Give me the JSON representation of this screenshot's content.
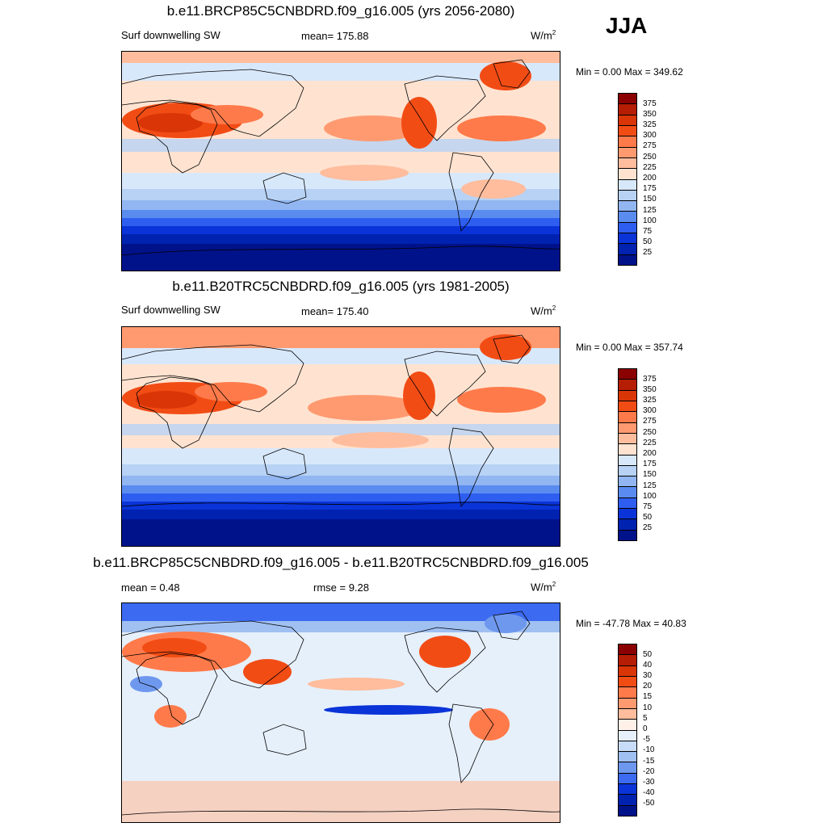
{
  "season": "JJA",
  "units_prefix": "W/m",
  "units_exp": "2",
  "panels": [
    {
      "title": "b.e11.BRCP85C5CNBDRD.f09_g16.005 (yrs 2056-2080)",
      "left_label": "Surf downwelling SW",
      "mid_label": "mean= 175.88",
      "minmax": "Min =   0.00 Max = 349.62",
      "cbar_labels": [
        "375",
        "350",
        "325",
        "300",
        "275",
        "250",
        "225",
        "200",
        "175",
        "150",
        "125",
        "100",
        "75",
        "50",
        "25"
      ],
      "cbar_colors": [
        "#8b0000",
        "#b51d04",
        "#d93507",
        "#f24c15",
        "#ff7a4a",
        "#ff9a70",
        "#ffbd9d",
        "#ffe3d0",
        "#d8e8fb",
        "#b7d2f5",
        "#91b6f1",
        "#5a8cf0",
        "#2e5ef0",
        "#0a34d8",
        "#0022b0",
        "#00128a"
      ]
    },
    {
      "title": "b.e11.B20TRC5CNBDRD.f09_g16.005 (yrs 1981-2005)",
      "left_label": "Surf downwelling SW",
      "mid_label": "mean= 175.40",
      "minmax": "Min =   0.00 Max = 357.74",
      "cbar_labels": [
        "375",
        "350",
        "325",
        "300",
        "275",
        "250",
        "225",
        "200",
        "175",
        "150",
        "125",
        "100",
        "75",
        "50",
        "25"
      ],
      "cbar_colors": [
        "#8b0000",
        "#b51d04",
        "#d93507",
        "#f24c15",
        "#ff7a4a",
        "#ff9a70",
        "#ffbd9d",
        "#ffe3d0",
        "#d8e8fb",
        "#b7d2f5",
        "#91b6f1",
        "#5a8cf0",
        "#2e5ef0",
        "#0a34d8",
        "#0022b0",
        "#00128a"
      ]
    },
    {
      "title": "b.e11.BRCP85C5CNBDRD.f09_g16.005 - b.e11.B20TRC5CNBDRD.f09_g16.005",
      "left_label": "mean =   0.48",
      "mid_label": "rmse =   9.28",
      "minmax": "Min = -47.78 Max =  40.83",
      "cbar_labels": [
        "50",
        "40",
        "30",
        "20",
        "15",
        "10",
        "5",
        "0",
        "-5",
        "-10",
        "-15",
        "-20",
        "-30",
        "-40",
        "-50"
      ],
      "cbar_colors": [
        "#8b0000",
        "#b51d04",
        "#d93507",
        "#f24c15",
        "#ff7a4a",
        "#ff9a70",
        "#ffbd9d",
        "#fff0e8",
        "#e6f0fb",
        "#c8dcf7",
        "#a0c0f2",
        "#6e98ee",
        "#3c6af0",
        "#0a34d8",
        "#0022b0",
        "#00128a"
      ]
    }
  ]
}
